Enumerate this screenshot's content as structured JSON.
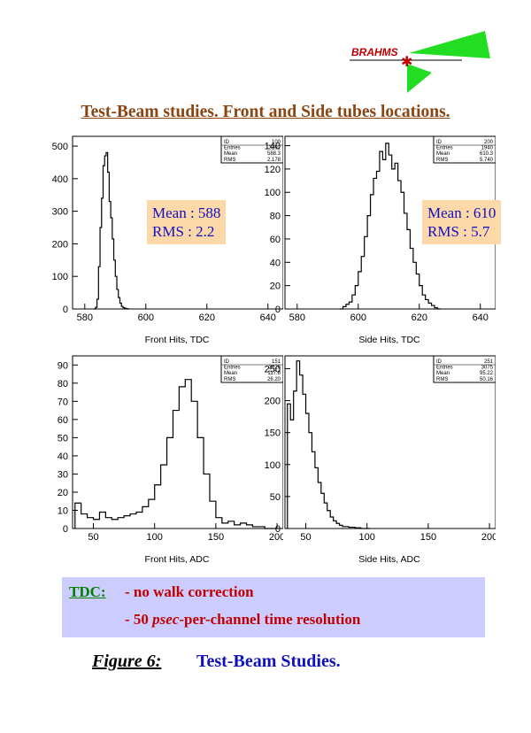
{
  "logo": {
    "text": "BRAHMS"
  },
  "title": "Test-Beam studies. Front and Side tubes locations.",
  "chart_data": [
    {
      "type": "line",
      "title": "",
      "xlabel": "Front Hits, TDC",
      "ylabel": "",
      "xlim": [
        576,
        645
      ],
      "ylim": [
        0,
        530
      ],
      "xticks": [
        580,
        600,
        620,
        640
      ],
      "yticks": [
        0,
        100,
        200,
        300,
        400,
        500
      ],
      "grid": false,
      "stats": {
        "id_label": "ID",
        "id": "100",
        "entries_label": "Entries",
        "entries": "3292",
        "mean_label": "Mean",
        "mean": "588.3",
        "rms_label": "RMS",
        "rms": "2.178"
      },
      "x": [
        583,
        583.5,
        584,
        584.5,
        585,
        585.5,
        586,
        586.5,
        587,
        587.5,
        588,
        588.5,
        589,
        589.5,
        590,
        590.5,
        591,
        591.5,
        592,
        592.5,
        593,
        593.5,
        594
      ],
      "values": [
        0,
        5,
        30,
        130,
        250,
        340,
        440,
        470,
        480,
        420,
        330,
        280,
        215,
        150,
        100,
        60,
        35,
        18,
        8,
        4,
        2,
        1,
        0
      ]
    },
    {
      "type": "line",
      "title": "",
      "xlabel": "Side Hits, TDC",
      "ylabel": "",
      "xlim": [
        576,
        645
      ],
      "ylim": [
        0,
        148
      ],
      "xticks": [
        580,
        600,
        620,
        640
      ],
      "yticks": [
        0,
        20,
        40,
        60,
        80,
        100,
        120,
        140
      ],
      "grid": false,
      "stats": {
        "id_label": "ID",
        "id": "200",
        "entries_label": "Entries",
        "entries": "1940",
        "mean_label": "Mean",
        "mean": "610.3",
        "rms_label": "RMS",
        "rms": "5.740"
      },
      "x": [
        594,
        595,
        596,
        597,
        598,
        599,
        600,
        601,
        602,
        603,
        604,
        605,
        606,
        607,
        608,
        609,
        610,
        611,
        612,
        613,
        614,
        615,
        616,
        617,
        618,
        619,
        620,
        621,
        622,
        623,
        624,
        625,
        626
      ],
      "values": [
        0,
        2,
        4,
        6,
        12,
        20,
        32,
        45,
        62,
        80,
        98,
        112,
        118,
        135,
        128,
        142,
        132,
        120,
        125,
        110,
        100,
        82,
        68,
        52,
        40,
        30,
        20,
        12,
        8,
        5,
        3,
        1,
        0
      ]
    },
    {
      "type": "line",
      "title": "",
      "xlabel": "Front Hits, ADC",
      "ylabel": "",
      "xlim": [
        33,
        205
      ],
      "ylim": [
        0,
        95
      ],
      "xticks": [
        50,
        100,
        150,
        200
      ],
      "yticks": [
        0,
        10,
        20,
        30,
        40,
        50,
        60,
        70,
        80,
        90
      ],
      "grid": false,
      "stats": {
        "id_label": "ID",
        "id": "151",
        "entries_label": "Entries",
        "entries": "3026",
        "mean_label": "Mean",
        "mean": "117.8",
        "rms_label": "RMS",
        "rms": "26.20"
      },
      "x": [
        35,
        40,
        45,
        50,
        55,
        60,
        65,
        70,
        75,
        80,
        85,
        90,
        95,
        100,
        105,
        110,
        115,
        120,
        125,
        130,
        135,
        140,
        145,
        150,
        155,
        160,
        165,
        170,
        175,
        180,
        185,
        190,
        195
      ],
      "values": [
        14,
        8,
        6,
        5,
        9,
        6,
        5,
        6,
        7,
        8,
        9,
        12,
        16,
        24,
        35,
        50,
        65,
        78,
        82,
        70,
        50,
        30,
        15,
        6,
        3,
        4,
        2,
        3,
        2,
        1,
        1,
        0,
        0
      ]
    },
    {
      "type": "line",
      "title": "",
      "xlabel": "Side Hits, ADC",
      "ylabel": "",
      "xlim": [
        33,
        205
      ],
      "ylim": [
        0,
        270
      ],
      "xticks": [
        50,
        100,
        150,
        200
      ],
      "yticks": [
        0,
        50,
        100,
        150,
        200,
        250
      ],
      "grid": false,
      "stats": {
        "id_label": "ID",
        "id": "251",
        "entries_label": "Entries",
        "entries": "3075",
        "mean_label": "Mean",
        "mean": "95.22",
        "rms_label": "RMS",
        "rms": "50.16"
      },
      "x": [
        35,
        37.5,
        40,
        42.5,
        45,
        47.5,
        50,
        52.5,
        55,
        57.5,
        60,
        62.5,
        65,
        67.5,
        70,
        72.5,
        75,
        77.5,
        80,
        85,
        90,
        95,
        100
      ],
      "values": [
        195,
        170,
        215,
        262,
        240,
        210,
        180,
        150,
        120,
        95,
        72,
        55,
        40,
        28,
        18,
        12,
        8,
        5,
        3,
        2,
        1,
        0,
        0
      ]
    }
  ],
  "stat_overlays": [
    {
      "mean_text": "Mean : 588",
      "rms_text": "RMS : 2.2"
    },
    {
      "mean_text": "Mean : 610",
      "rms_text": "RMS : 5.7"
    }
  ],
  "notes": {
    "tdc_label": "TDC:",
    "line1": "- no walk correction",
    "line2_prefix": "- 50 ",
    "line2_emph": "psec",
    "line2_suffix": "-per-channel time resolution"
  },
  "caption": {
    "label": "Figure 6:",
    "text": "Test-Beam Studies."
  },
  "colors": {
    "title": "#8b4513",
    "stat_text": "#1010c0",
    "stat_bg": "#fdd8a8",
    "note_bg": "#ccccff",
    "note_label": "#008000",
    "note_text": "#c00000",
    "logo_green": "#22dd22",
    "logo_red": "#c00000"
  }
}
